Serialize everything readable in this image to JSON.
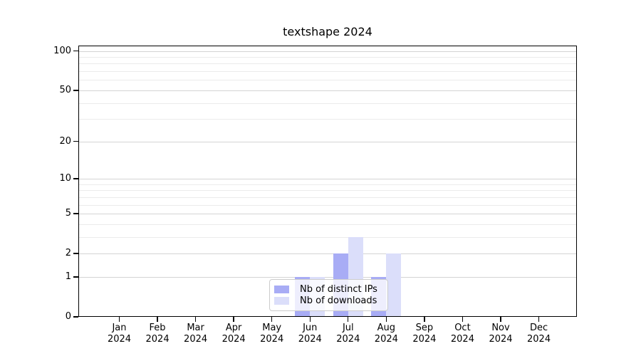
{
  "chart_data": {
    "type": "bar",
    "title": "textshape 2024",
    "categories": [
      "Jan 2024",
      "Feb 2024",
      "Mar 2024",
      "Apr 2024",
      "May 2024",
      "Jun 2024",
      "Jul 2024",
      "Aug 2024",
      "Sep 2024",
      "Oct 2024",
      "Nov 2024",
      "Dec 2024"
    ],
    "series": [
      {
        "name": "Nb of distinct IPs",
        "color": "#a8acf5",
        "values": [
          0,
          0,
          0,
          0,
          0,
          1,
          2,
          1,
          0,
          0,
          0,
          0
        ]
      },
      {
        "name": "Nb of downloads",
        "color": "#dbdefa",
        "values": [
          0,
          0,
          0,
          0,
          0,
          1,
          3,
          2,
          0,
          0,
          0,
          0
        ]
      }
    ],
    "xlabel": "",
    "ylabel": "",
    "yscale": "log1p",
    "ylim": [
      0,
      110
    ],
    "y_major_ticks": [
      0,
      1,
      2,
      5,
      10,
      20,
      50,
      100
    ],
    "y_minor_gridlines": [
      3,
      4,
      6,
      7,
      8,
      9,
      30,
      40,
      60,
      70,
      80,
      90
    ],
    "grid": "horizontal",
    "legend_position": "bottom-center",
    "colors": {
      "axis": "#000000",
      "major_grid": "#d4d4d4",
      "minor_grid": "#ebebeb",
      "legend_border": "#cccccc"
    }
  }
}
